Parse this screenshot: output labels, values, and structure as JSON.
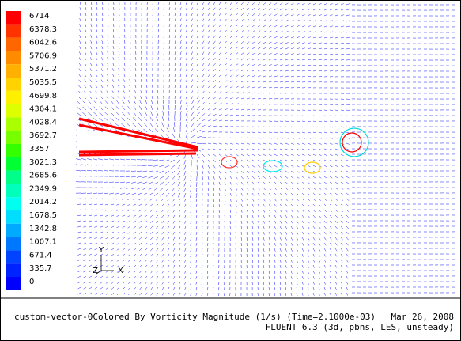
{
  "colorbar": {
    "labels": [
      "6714",
      "6378.3",
      "6042.6",
      "5706.9",
      "5371.2",
      "5035.5",
      "4699.8",
      "4364.1",
      "4028.4",
      "3692.7",
      "3357",
      "3021.3",
      "2685.6",
      "2349.9",
      "2014.2",
      "1678.5",
      "1342.8",
      "1007.1",
      "671.4",
      "335.7",
      "0"
    ],
    "colors": [
      "#ff0000",
      "#ff3300",
      "#ff6600",
      "#ff8c00",
      "#ffb000",
      "#ffd200",
      "#fff000",
      "#ddff00",
      "#aaff00",
      "#77ff00",
      "#33ff00",
      "#00ff33",
      "#00ff88",
      "#00ffbb",
      "#00ffee",
      "#00ddff",
      "#00aaff",
      "#0077ff",
      "#0044ff",
      "#0022ff",
      "#0000ff"
    ]
  },
  "axes": {
    "y": "Y",
    "z": "Z",
    "x": "X"
  },
  "footer": {
    "description": "custom-vector-0Colored By Vorticity Magnitude (1/s)  (Time=2.1000e-03)",
    "date": "Mar 26, 2008",
    "solver": "FLUENT 6.3 (3d, pbns, LES, unsteady)"
  }
}
